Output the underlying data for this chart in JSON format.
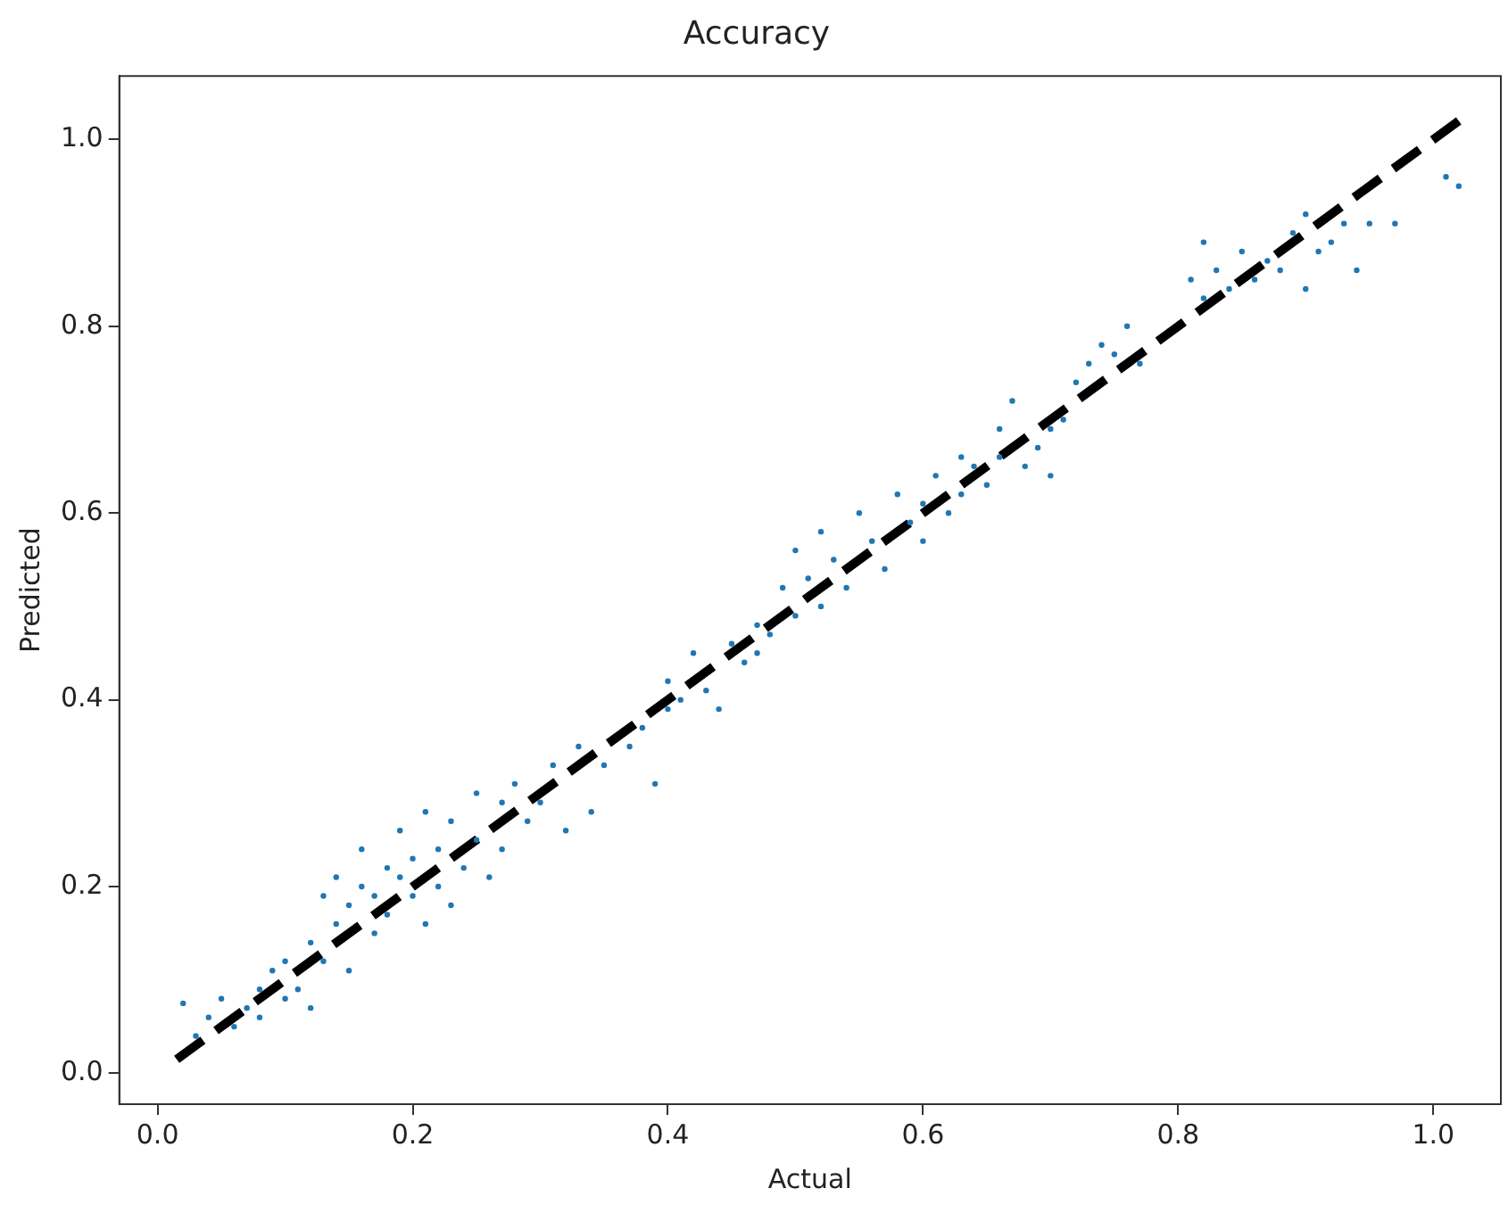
{
  "chart_data": {
    "type": "scatter",
    "title": "Accuracy",
    "xlabel": "Actual",
    "ylabel": "Predicted",
    "marker": "circle",
    "grid": false,
    "legend": false,
    "xlim": [
      -0.03,
      1.053
    ],
    "ylim": [
      -0.033,
      1.068
    ],
    "xticks": [
      {
        "value": 0,
        "label": "0.0"
      },
      0.2,
      0.4,
      0.6,
      0.8,
      {
        "value": 1,
        "label": "1.0"
      }
    ],
    "yticks": [
      {
        "value": 0,
        "label": "0.0"
      },
      0.2,
      0.4,
      0.6,
      0.8,
      {
        "value": 1,
        "label": "1.0"
      }
    ],
    "series": [
      {
        "type": "scatter",
        "color": "#1f77b4",
        "x": [
          0.02,
          0.03,
          0.04,
          0.05,
          0.06,
          0.07,
          0.08,
          0.08,
          0.09,
          0.1,
          0.1,
          0.11,
          0.12,
          0.12,
          0.13,
          0.13,
          0.14,
          0.14,
          0.15,
          0.15,
          0.16,
          0.16,
          0.17,
          0.17,
          0.18,
          0.18,
          0.19,
          0.19,
          0.2,
          0.2,
          0.21,
          0.21,
          0.22,
          0.22,
          0.23,
          0.23,
          0.24,
          0.25,
          0.25,
          0.26,
          0.27,
          0.27,
          0.28,
          0.29,
          0.3,
          0.31,
          0.32,
          0.33,
          0.34,
          0.35,
          0.37,
          0.38,
          0.39,
          0.4,
          0.4,
          0.41,
          0.42,
          0.43,
          0.44,
          0.45,
          0.46,
          0.47,
          0.47,
          0.48,
          0.49,
          0.5,
          0.5,
          0.51,
          0.52,
          0.52,
          0.53,
          0.54,
          0.55,
          0.56,
          0.57,
          0.58,
          0.59,
          0.6,
          0.6,
          0.61,
          0.62,
          0.63,
          0.63,
          0.64,
          0.65,
          0.66,
          0.66,
          0.67,
          0.68,
          0.69,
          0.7,
          0.7,
          0.71,
          0.72,
          0.73,
          0.74,
          0.75,
          0.76,
          0.77,
          0.81,
          0.82,
          0.82,
          0.83,
          0.84,
          0.85,
          0.86,
          0.87,
          0.88,
          0.89,
          0.9,
          0.9,
          0.91,
          0.92,
          0.93,
          0.94,
          0.95,
          0.97,
          1.01,
          1.02
        ],
        "values": [
          0.075,
          0.04,
          0.06,
          0.08,
          0.05,
          0.07,
          0.09,
          0.06,
          0.11,
          0.08,
          0.12,
          0.09,
          0.14,
          0.07,
          0.19,
          0.12,
          0.21,
          0.16,
          0.18,
          0.11,
          0.2,
          0.24,
          0.19,
          0.15,
          0.22,
          0.17,
          0.26,
          0.21,
          0.19,
          0.23,
          0.28,
          0.16,
          0.24,
          0.2,
          0.27,
          0.18,
          0.22,
          0.3,
          0.25,
          0.21,
          0.29,
          0.24,
          0.31,
          0.27,
          0.29,
          0.33,
          0.26,
          0.35,
          0.28,
          0.33,
          0.35,
          0.37,
          0.31,
          0.42,
          0.39,
          0.4,
          0.45,
          0.41,
          0.39,
          0.46,
          0.44,
          0.48,
          0.45,
          0.47,
          0.52,
          0.49,
          0.56,
          0.53,
          0.5,
          0.58,
          0.55,
          0.52,
          0.6,
          0.57,
          0.54,
          0.62,
          0.59,
          0.61,
          0.57,
          0.64,
          0.6,
          0.66,
          0.62,
          0.65,
          0.63,
          0.69,
          0.66,
          0.72,
          0.65,
          0.67,
          0.69,
          0.64,
          0.7,
          0.74,
          0.76,
          0.78,
          0.77,
          0.8,
          0.76,
          0.85,
          0.89,
          0.83,
          0.86,
          0.84,
          0.88,
          0.85,
          0.87,
          0.86,
          0.9,
          0.92,
          0.84,
          0.88,
          0.89,
          0.91,
          0.86,
          0.91,
          0.91,
          0.96,
          0.95
        ]
      },
      {
        "type": "line",
        "color": "#000000",
        "line_style": "dashed",
        "marker": "none",
        "x": [
          0.015,
          1.02
        ],
        "values": [
          0.015,
          1.02
        ]
      }
    ]
  }
}
